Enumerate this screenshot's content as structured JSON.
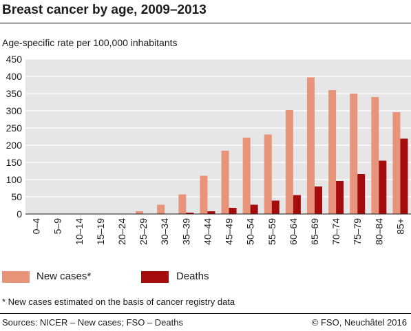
{
  "chart_data": {
    "type": "bar",
    "title": "Breast cancer by age, 2009–2013",
    "ylabel": "Age-specific rate per 100,000 inhabitants",
    "xlabel": "",
    "ylim": [
      0,
      450
    ],
    "yticks": [
      0,
      50,
      100,
      150,
      200,
      250,
      300,
      350,
      400,
      450
    ],
    "grid": true,
    "legend_position": "bottom",
    "categories": [
      "0–4",
      "5–9",
      "10–14",
      "15–19",
      "20–24",
      "25–29",
      "30–34",
      "35–39",
      "40–44",
      "45–49",
      "50–54",
      "55–59",
      "60–64",
      "65–69",
      "70–74",
      "75–79",
      "80–84",
      "85+"
    ],
    "series": [
      {
        "name": "New cases*",
        "color": "#e8947a",
        "values": [
          0,
          0,
          0,
          0,
          1,
          8,
          27,
          57,
          111,
          184,
          222,
          231,
          302,
          397,
          360,
          350,
          340,
          296
        ]
      },
      {
        "name": "Deaths",
        "color": "#a50d0d",
        "values": [
          0,
          0,
          0,
          0,
          0,
          0,
          1,
          4,
          8,
          18,
          27,
          39,
          55,
          80,
          96,
          116,
          155,
          219
        ]
      }
    ]
  },
  "footnote": "* New cases estimated on the basis of cancer registry data",
  "sources": "Sources: NICER – New cases; FSO – Deaths",
  "copyright": "© FSO, Neuchâtel 2016"
}
